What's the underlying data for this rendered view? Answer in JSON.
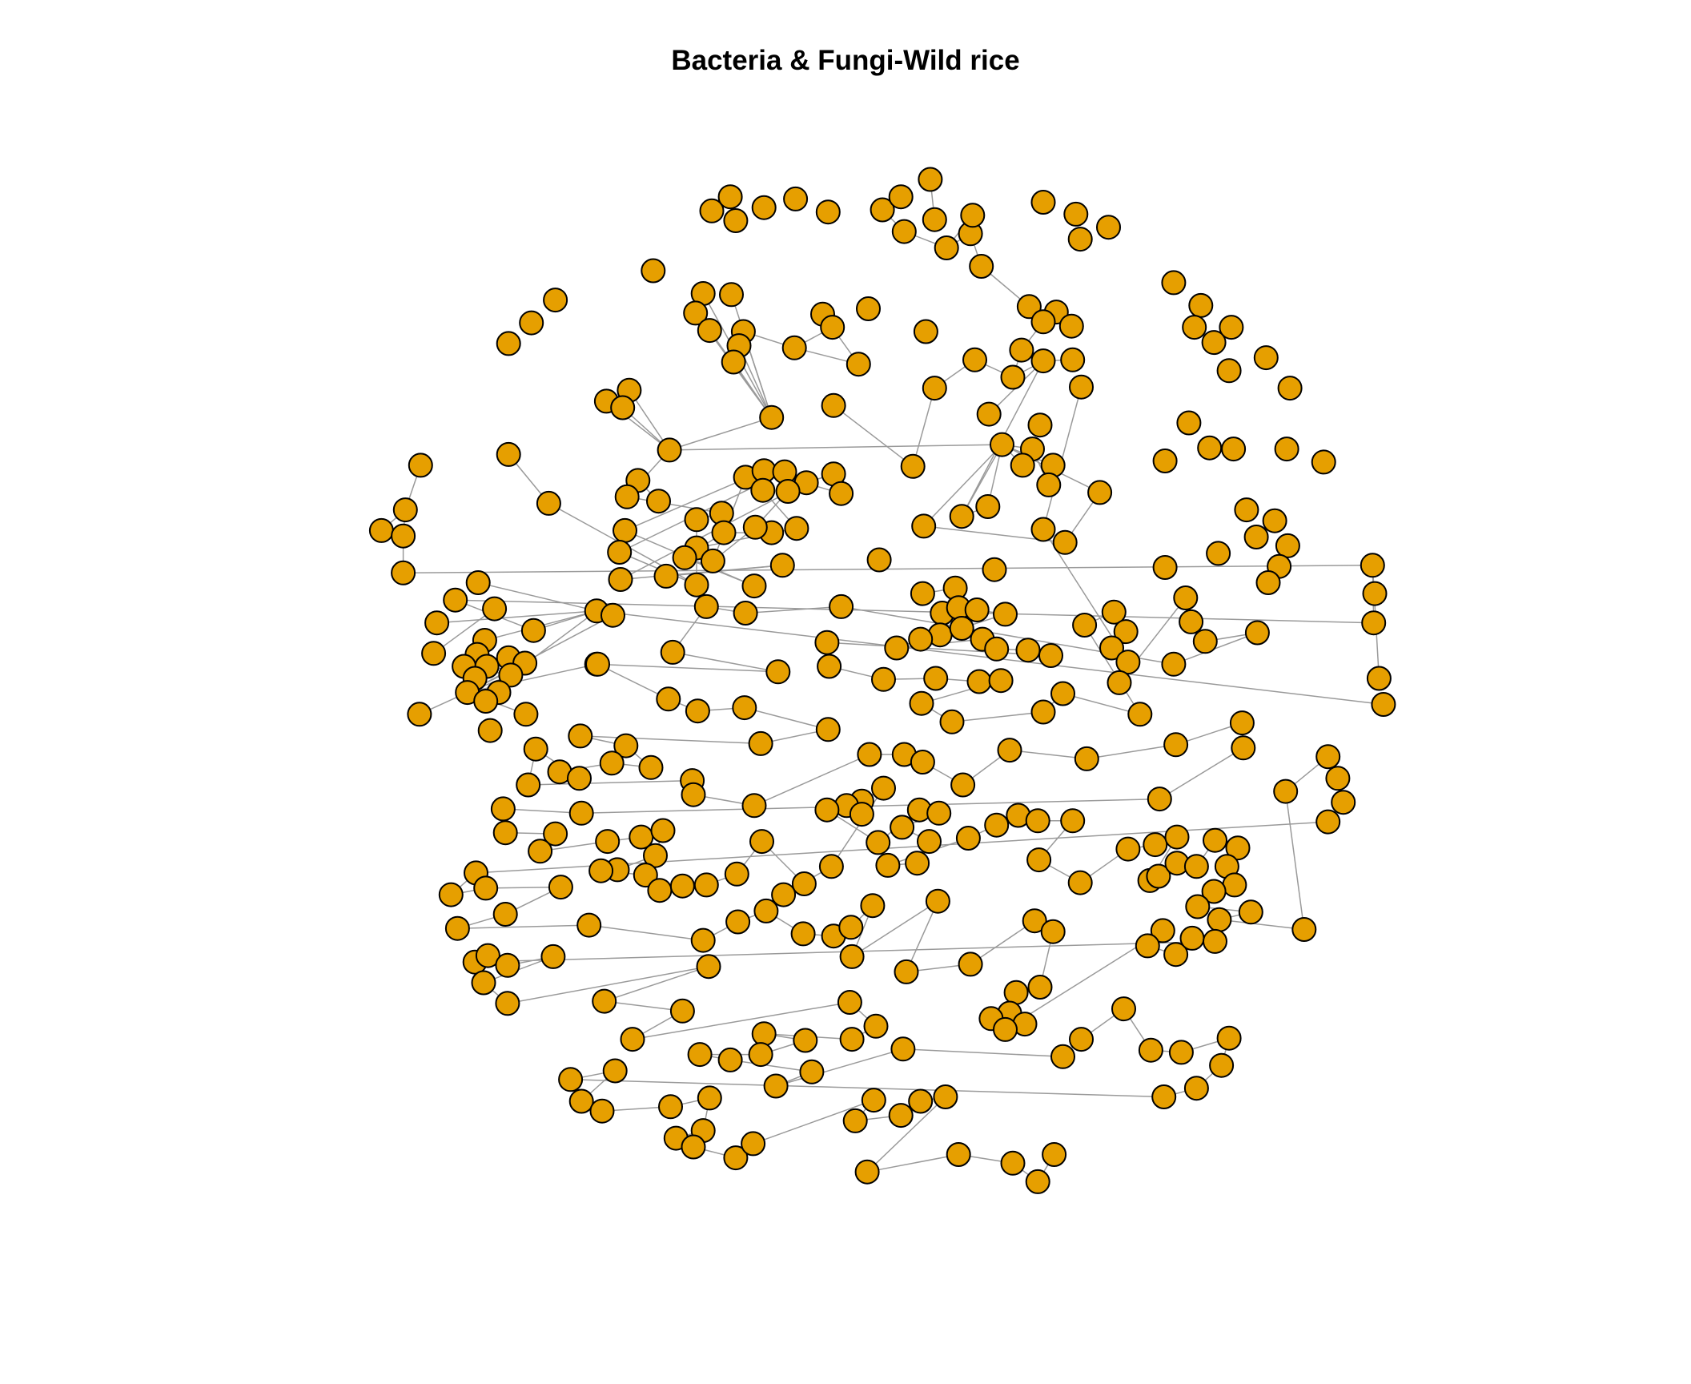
{
  "title": "Bacteria & Fungi-Wild rice",
  "colors": {
    "node_fill": "#E69F00",
    "node_border": "#000000",
    "edge": "#9a9a9a",
    "background": "#ffffff"
  }
}
